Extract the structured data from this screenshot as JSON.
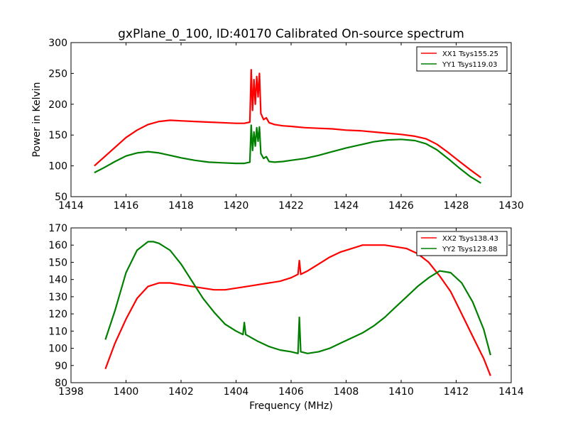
{
  "title": "gxPlane_0_100, ID:40170 Calibrated On-source spectrum",
  "chart_data": [
    {
      "type": "line",
      "ylabel": "Power in Kelvin",
      "xlabel": "",
      "xlim": [
        1414,
        1430
      ],
      "ylim": [
        50,
        300
      ],
      "xticks": [
        "1414",
        "1416",
        "1418",
        "1420",
        "1422",
        "1424",
        "1426",
        "1428",
        "1430"
      ],
      "yticks": [
        "50",
        "100",
        "150",
        "200",
        "250",
        "300"
      ],
      "legend_position": "top-right",
      "grid": false,
      "series": [
        {
          "name": "XX1 Tsys155.25",
          "color": "#ff0000",
          "x": [
            1414.85,
            1415.2,
            1415.6,
            1416.0,
            1416.4,
            1416.8,
            1417.2,
            1417.6,
            1418.0,
            1418.5,
            1419.0,
            1419.5,
            1420.0,
            1420.3,
            1420.5,
            1420.55,
            1420.6,
            1420.65,
            1420.7,
            1420.75,
            1420.8,
            1420.85,
            1420.9,
            1421.0,
            1421.1,
            1421.2,
            1421.4,
            1421.7,
            1422.0,
            1422.5,
            1423.0,
            1423.5,
            1424.0,
            1424.5,
            1425.0,
            1425.5,
            1426.0,
            1426.5,
            1426.9,
            1427.3,
            1427.7,
            1428.1,
            1428.5,
            1428.9
          ],
          "y": [
            100,
            114,
            130,
            146,
            158,
            167,
            172,
            174,
            173,
            172,
            171,
            170,
            169,
            169,
            171,
            256,
            190,
            240,
            200,
            245,
            212,
            250,
            185,
            175,
            178,
            170,
            167,
            165,
            164,
            162,
            161,
            160,
            158,
            157,
            155,
            153,
            151,
            148,
            144,
            135,
            122,
            108,
            94,
            81
          ]
        },
        {
          "name": "YY1 Tsys119.03",
          "color": "#008000",
          "x": [
            1414.85,
            1415.2,
            1415.6,
            1416.0,
            1416.4,
            1416.8,
            1417.2,
            1417.6,
            1418.0,
            1418.5,
            1419.0,
            1419.5,
            1420.0,
            1420.3,
            1420.5,
            1420.55,
            1420.6,
            1420.65,
            1420.7,
            1420.75,
            1420.8,
            1420.85,
            1420.9,
            1421.0,
            1421.1,
            1421.2,
            1421.4,
            1421.7,
            1422.0,
            1422.5,
            1423.0,
            1423.5,
            1424.0,
            1424.5,
            1425.0,
            1425.5,
            1426.0,
            1426.5,
            1426.9,
            1427.3,
            1427.7,
            1428.1,
            1428.5,
            1428.9
          ],
          "y": [
            89,
            97,
            107,
            116,
            121,
            123,
            121,
            117,
            113,
            109,
            106,
            105,
            104,
            104,
            106,
            166,
            125,
            155,
            132,
            162,
            140,
            163,
            120,
            112,
            115,
            107,
            106,
            107,
            109,
            112,
            117,
            123,
            129,
            134,
            139,
            142,
            143,
            141,
            136,
            126,
            112,
            97,
            83,
            72
          ]
        }
      ]
    },
    {
      "type": "line",
      "ylabel": "",
      "xlabel": "Frequency (MHz)",
      "xlim": [
        1398,
        1414
      ],
      "ylim": [
        80,
        170
      ],
      "xticks": [
        "1398",
        "1400",
        "1402",
        "1404",
        "1406",
        "1408",
        "1410",
        "1412",
        "1414"
      ],
      "yticks": [
        "80",
        "90",
        "100",
        "110",
        "120",
        "130",
        "140",
        "150",
        "160",
        "170"
      ],
      "legend_position": "top-right",
      "grid": false,
      "series": [
        {
          "name": "XX2 Tsys138.43",
          "color": "#ff0000",
          "x": [
            1399.25,
            1399.6,
            1400.0,
            1400.4,
            1400.8,
            1401.2,
            1401.6,
            1402.0,
            1402.4,
            1402.8,
            1403.2,
            1403.6,
            1404.0,
            1404.4,
            1404.8,
            1405.2,
            1405.6,
            1406.0,
            1406.25,
            1406.3,
            1406.35,
            1406.6,
            1407.0,
            1407.4,
            1407.8,
            1408.2,
            1408.6,
            1409.0,
            1409.4,
            1409.8,
            1410.2,
            1410.6,
            1411.0,
            1411.4,
            1411.8,
            1412.2,
            1412.6,
            1413.0,
            1413.25
          ],
          "y": [
            88,
            103,
            117,
            129,
            136,
            138,
            138,
            137,
            136,
            135,
            134,
            134,
            135,
            136,
            137,
            138,
            139,
            141,
            143,
            151,
            143,
            145,
            149,
            153,
            156,
            158,
            160,
            160,
            160,
            159,
            158,
            155,
            150,
            142,
            133,
            120,
            107,
            94,
            84
          ]
        },
        {
          "name": "YY2 Tsys123.88",
          "color": "#008000",
          "x": [
            1399.25,
            1399.6,
            1400.0,
            1400.4,
            1400.8,
            1401.0,
            1401.2,
            1401.6,
            1402.0,
            1402.4,
            1402.8,
            1403.2,
            1403.6,
            1404.0,
            1404.25,
            1404.3,
            1404.35,
            1404.8,
            1405.2,
            1405.6,
            1406.0,
            1406.25,
            1406.3,
            1406.35,
            1406.6,
            1407.0,
            1407.4,
            1407.8,
            1408.2,
            1408.6,
            1409.0,
            1409.4,
            1409.8,
            1410.2,
            1410.6,
            1411.0,
            1411.4,
            1411.8,
            1412.2,
            1412.6,
            1413.0,
            1413.25
          ],
          "y": [
            105,
            122,
            144,
            157,
            162,
            162,
            161,
            157,
            149,
            139,
            129,
            121,
            114,
            110,
            108,
            115,
            108,
            104,
            101,
            99,
            98,
            97,
            118,
            98,
            97,
            98,
            100,
            103,
            106,
            109,
            113,
            118,
            124,
            130,
            136,
            141,
            145,
            144,
            138,
            127,
            111,
            96
          ]
        }
      ]
    }
  ]
}
